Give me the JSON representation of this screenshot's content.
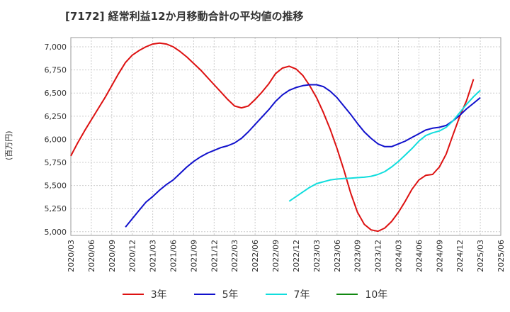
{
  "chart_data": {
    "type": "line",
    "title": "[7172]  経常利益12か月移動合計の平均値の推移",
    "ylabel": "(百万円)",
    "xlabel": "",
    "ylim": [
      4960,
      7100
    ],
    "yticks": [
      5000,
      5250,
      5500,
      5750,
      6000,
      6250,
      6500,
      6750,
      7000
    ],
    "ytick_labels": [
      "5,000",
      "5,250",
      "5,500",
      "5,750",
      "6,000",
      "6,250",
      "6,500",
      "6,750",
      "7,000"
    ],
    "xticks": [
      "2020/03",
      "2020/06",
      "2020/09",
      "2020/12",
      "2021/03",
      "2021/06",
      "2021/09",
      "2021/12",
      "2022/03",
      "2022/06",
      "2022/09",
      "2022/12",
      "2023/03",
      "2023/06",
      "2023/09",
      "2023/12",
      "2024/03",
      "2024/06",
      "2024/09",
      "2024/12",
      "2025/03",
      "2025/06"
    ],
    "grid": true,
    "legend_position": "bottom",
    "series": [
      {
        "name": "3年",
        "color": "#dd1111",
        "points": [
          [
            "2020/03",
            5820
          ],
          [
            "2020/04",
            5960
          ],
          [
            "2020/05",
            6090
          ],
          [
            "2020/06",
            6210
          ],
          [
            "2020/07",
            6330
          ],
          [
            "2020/08",
            6450
          ],
          [
            "2020/09",
            6580
          ],
          [
            "2020/10",
            6710
          ],
          [
            "2020/11",
            6830
          ],
          [
            "2020/12",
            6910
          ],
          [
            "2021/01",
            6960
          ],
          [
            "2021/02",
            7000
          ],
          [
            "2021/03",
            7030
          ],
          [
            "2021/04",
            7040
          ],
          [
            "2021/05",
            7030
          ],
          [
            "2021/06",
            7000
          ],
          [
            "2021/07",
            6950
          ],
          [
            "2021/08",
            6890
          ],
          [
            "2021/09",
            6820
          ],
          [
            "2021/10",
            6750
          ],
          [
            "2021/11",
            6670
          ],
          [
            "2021/12",
            6590
          ],
          [
            "2022/01",
            6510
          ],
          [
            "2022/02",
            6430
          ],
          [
            "2022/03",
            6360
          ],
          [
            "2022/04",
            6340
          ],
          [
            "2022/05",
            6360
          ],
          [
            "2022/06",
            6430
          ],
          [
            "2022/07",
            6510
          ],
          [
            "2022/08",
            6600
          ],
          [
            "2022/09",
            6710
          ],
          [
            "2022/10",
            6770
          ],
          [
            "2022/11",
            6790
          ],
          [
            "2022/12",
            6760
          ],
          [
            "2023/01",
            6690
          ],
          [
            "2023/02",
            6580
          ],
          [
            "2023/03",
            6450
          ],
          [
            "2023/04",
            6290
          ],
          [
            "2023/05",
            6110
          ],
          [
            "2023/06",
            5900
          ],
          [
            "2023/07",
            5670
          ],
          [
            "2023/08",
            5420
          ],
          [
            "2023/09",
            5210
          ],
          [
            "2023/10",
            5080
          ],
          [
            "2023/11",
            5020
          ],
          [
            "2023/12",
            5005
          ],
          [
            "2024/01",
            5040
          ],
          [
            "2024/02",
            5110
          ],
          [
            "2024/03",
            5210
          ],
          [
            "2024/04",
            5330
          ],
          [
            "2024/05",
            5460
          ],
          [
            "2024/06",
            5560
          ],
          [
            "2024/07",
            5610
          ],
          [
            "2024/08",
            5620
          ],
          [
            "2024/09",
            5700
          ],
          [
            "2024/10",
            5840
          ],
          [
            "2024/11",
            6050
          ],
          [
            "2024/12",
            6250
          ],
          [
            "2025/01",
            6420
          ],
          [
            "2025/02",
            6650
          ]
        ]
      },
      {
        "name": "5年",
        "color": "#1111cc",
        "points": [
          [
            "2020/11",
            5050
          ],
          [
            "2020/12",
            5140
          ],
          [
            "2021/01",
            5230
          ],
          [
            "2021/02",
            5320
          ],
          [
            "2021/03",
            5380
          ],
          [
            "2021/04",
            5450
          ],
          [
            "2021/05",
            5510
          ],
          [
            "2021/06",
            5560
          ],
          [
            "2021/07",
            5630
          ],
          [
            "2021/08",
            5700
          ],
          [
            "2021/09",
            5760
          ],
          [
            "2021/10",
            5810
          ],
          [
            "2021/11",
            5850
          ],
          [
            "2021/12",
            5880
          ],
          [
            "2022/01",
            5910
          ],
          [
            "2022/02",
            5930
          ],
          [
            "2022/03",
            5960
          ],
          [
            "2022/04",
            6010
          ],
          [
            "2022/05",
            6080
          ],
          [
            "2022/06",
            6160
          ],
          [
            "2022/07",
            6240
          ],
          [
            "2022/08",
            6320
          ],
          [
            "2022/09",
            6410
          ],
          [
            "2022/10",
            6480
          ],
          [
            "2022/11",
            6530
          ],
          [
            "2022/12",
            6560
          ],
          [
            "2023/01",
            6580
          ],
          [
            "2023/02",
            6590
          ],
          [
            "2023/03",
            6590
          ],
          [
            "2023/04",
            6570
          ],
          [
            "2023/05",
            6520
          ],
          [
            "2023/06",
            6450
          ],
          [
            "2023/07",
            6360
          ],
          [
            "2023/08",
            6270
          ],
          [
            "2023/09",
            6170
          ],
          [
            "2023/10",
            6080
          ],
          [
            "2023/11",
            6010
          ],
          [
            "2023/12",
            5950
          ],
          [
            "2024/01",
            5920
          ],
          [
            "2024/02",
            5920
          ],
          [
            "2024/03",
            5950
          ],
          [
            "2024/04",
            5980
          ],
          [
            "2024/05",
            6020
          ],
          [
            "2024/06",
            6060
          ],
          [
            "2024/07",
            6100
          ],
          [
            "2024/08",
            6120
          ],
          [
            "2024/09",
            6130
          ],
          [
            "2024/10",
            6150
          ],
          [
            "2024/11",
            6200
          ],
          [
            "2024/12",
            6260
          ],
          [
            "2025/01",
            6330
          ],
          [
            "2025/02",
            6390
          ],
          [
            "2025/03",
            6450
          ]
        ]
      },
      {
        "name": "7年",
        "color": "#11dddd",
        "points": [
          [
            "2022/11",
            5330
          ],
          [
            "2022/12",
            5380
          ],
          [
            "2023/01",
            5430
          ],
          [
            "2023/02",
            5480
          ],
          [
            "2023/03",
            5520
          ],
          [
            "2023/04",
            5540
          ],
          [
            "2023/05",
            5560
          ],
          [
            "2023/06",
            5570
          ],
          [
            "2023/07",
            5575
          ],
          [
            "2023/08",
            5580
          ],
          [
            "2023/09",
            5585
          ],
          [
            "2023/10",
            5590
          ],
          [
            "2023/11",
            5600
          ],
          [
            "2023/12",
            5620
          ],
          [
            "2024/01",
            5650
          ],
          [
            "2024/02",
            5700
          ],
          [
            "2024/03",
            5760
          ],
          [
            "2024/04",
            5830
          ],
          [
            "2024/05",
            5900
          ],
          [
            "2024/06",
            5980
          ],
          [
            "2024/07",
            6040
          ],
          [
            "2024/08",
            6070
          ],
          [
            "2024/09",
            6090
          ],
          [
            "2024/10",
            6130
          ],
          [
            "2024/11",
            6200
          ],
          [
            "2024/12",
            6290
          ],
          [
            "2025/01",
            6380
          ],
          [
            "2025/02",
            6460
          ],
          [
            "2025/03",
            6530
          ]
        ]
      },
      {
        "name": "10年",
        "color": "#118811",
        "points": []
      }
    ]
  }
}
